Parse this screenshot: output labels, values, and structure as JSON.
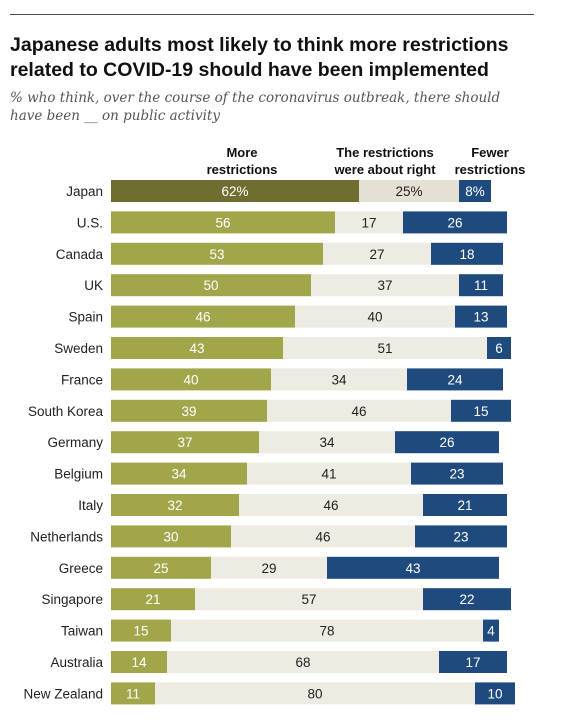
{
  "title": "Japanese adults most likely to think more restrictions related to COVID-19 should have been implemented",
  "subtitle": "% who think, over the course of the coronavirus outbreak, there should have been __ on public activity",
  "columns": {
    "more": "More restrictions",
    "about_right": "The restrictions were about right",
    "fewer": "Fewer restrictions"
  },
  "colors": {
    "more_first": "#6f6e30",
    "more": "#a1a64a",
    "about_right": "#eeebe3",
    "about_right_first": "#e4e0d4",
    "fewer": "#1f4a7e",
    "label_light": "#ffffff",
    "label_dark": "#222222"
  },
  "chart_data": {
    "type": "bar",
    "orientation": "horizontal",
    "stacked": true,
    "categories": [
      "Japan",
      "U.S.",
      "Canada",
      "UK",
      "Spain",
      "Sweden",
      "France",
      "South Korea",
      "Germany",
      "Belgium",
      "Italy",
      "Netherlands",
      "Greece",
      "Singapore",
      "Taiwan",
      "Australia",
      "New Zealand"
    ],
    "series": [
      {
        "name": "More restrictions",
        "values": [
          62,
          56,
          53,
          50,
          46,
          43,
          40,
          39,
          37,
          34,
          32,
          30,
          25,
          21,
          15,
          14,
          11
        ]
      },
      {
        "name": "The restrictions were about right",
        "values": [
          25,
          17,
          27,
          37,
          40,
          51,
          34,
          46,
          34,
          41,
          46,
          46,
          29,
          57,
          78,
          68,
          80
        ]
      },
      {
        "name": "Fewer restrictions",
        "values": [
          8,
          26,
          18,
          11,
          13,
          6,
          24,
          15,
          26,
          23,
          21,
          23,
          43,
          22,
          4,
          17,
          10
        ]
      }
    ],
    "value_labels": [
      [
        "62%",
        "25%",
        "8%"
      ],
      [
        "56",
        "17",
        "26"
      ],
      [
        "53",
        "27",
        "18"
      ],
      [
        "50",
        "37",
        "11"
      ],
      [
        "46",
        "40",
        "13"
      ],
      [
        "43",
        "51",
        "6"
      ],
      [
        "40",
        "34",
        "24"
      ],
      [
        "39",
        "46",
        "15"
      ],
      [
        "37",
        "34",
        "26"
      ],
      [
        "34",
        "41",
        "23"
      ],
      [
        "32",
        "46",
        "21"
      ],
      [
        "30",
        "46",
        "23"
      ],
      [
        "25",
        "29",
        "43"
      ],
      [
        "21",
        "57",
        "22"
      ],
      [
        "15",
        "78",
        "4"
      ],
      [
        "14",
        "68",
        "17"
      ],
      [
        "11",
        "80",
        "10"
      ]
    ],
    "xlim": [
      0,
      100
    ],
    "grid": false,
    "legend": "column headers above bars"
  }
}
